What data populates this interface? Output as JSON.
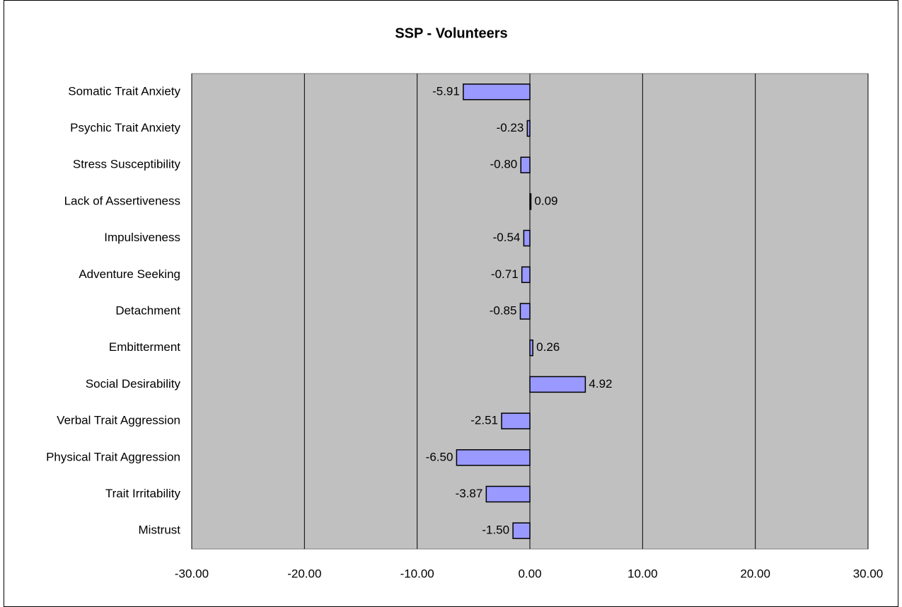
{
  "chart_data": {
    "type": "bar",
    "orientation": "horizontal",
    "title": "SSP - Volunteers",
    "categories": [
      "Somatic Trait Anxiety",
      "Psychic Trait Anxiety",
      "Stress Susceptibility",
      "Lack of Assertiveness",
      "Impulsiveness",
      "Adventure Seeking",
      "Detachment",
      "Embitterment",
      "Social Desirability",
      "Verbal Trait Aggression",
      "Physical Trait Aggression",
      "Trait Irritability",
      "Mistrust"
    ],
    "values": [
      -5.91,
      -0.23,
      -0.8,
      0.09,
      -0.54,
      -0.71,
      -0.85,
      0.26,
      4.92,
      -2.51,
      -6.5,
      -3.87,
      -1.5
    ],
    "value_labels": [
      "-5.91",
      "-0.23",
      "-0.80",
      "0.09",
      "-0.54",
      "-0.71",
      "-0.85",
      "0.26",
      "4.92",
      "-2.51",
      "-6.50",
      "-3.87",
      "-1.50"
    ],
    "color": "#9999ff",
    "xlim": [
      -30,
      30
    ],
    "xticks": [
      {
        "value": -30,
        "label": "-30.00"
      },
      {
        "value": -20,
        "label": "-20.00"
      },
      {
        "value": -10,
        "label": "-10.00"
      },
      {
        "value": 0,
        "label": "0.00"
      },
      {
        "value": 10,
        "label": "10.00"
      },
      {
        "value": 20,
        "label": "20.00"
      },
      {
        "value": 30,
        "label": "30.00"
      }
    ],
    "grid": true
  }
}
